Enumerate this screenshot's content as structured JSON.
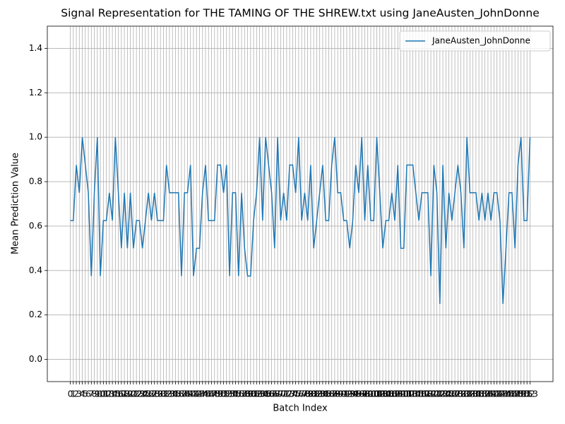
{
  "chart_data": {
    "type": "line",
    "title": "Signal Representation for THE TAMING OF THE SHREW.txt using JaneAusten_JohnDonne",
    "x_label": "Batch Index",
    "y_label": "Mean Prediction Value",
    "x": [
      0,
      1,
      2,
      3,
      4,
      5,
      6,
      7,
      8,
      9,
      10,
      11,
      12,
      13,
      14,
      15,
      16,
      17,
      18,
      19,
      20,
      21,
      22,
      23,
      24,
      25,
      26,
      27,
      28,
      29,
      30,
      31,
      32,
      33,
      34,
      35,
      36,
      37,
      38,
      39,
      40,
      41,
      42,
      43,
      44,
      45,
      46,
      47,
      48,
      49,
      50,
      51,
      52,
      53,
      54,
      55,
      56,
      57,
      58,
      59,
      60,
      61,
      62,
      63,
      64,
      65,
      66,
      67,
      68,
      69,
      70,
      71,
      72,
      73,
      74,
      75,
      76,
      77,
      78,
      79,
      80,
      81,
      82,
      83,
      84,
      85,
      86,
      87,
      88,
      89,
      90,
      91,
      92,
      93,
      94,
      95,
      96,
      97,
      98,
      99,
      100,
      101,
      102,
      103,
      104,
      105,
      106,
      107,
      108,
      109,
      110,
      111,
      112,
      113,
      114,
      115,
      116,
      117,
      118,
      119,
      120,
      121,
      122,
      123,
      124,
      125,
      126,
      127,
      128,
      129,
      130,
      131,
      132,
      133,
      134,
      135,
      136,
      137,
      138,
      139,
      140,
      141,
      142,
      143,
      144,
      145,
      146,
      147,
      148,
      149,
      150,
      151,
      152,
      153
    ],
    "series": [
      {
        "name": "JaneAusten_JohnDonne",
        "color": "#1f77b4",
        "values": [
          0.625,
          0.625,
          0.875,
          0.75,
          1.0,
          0.875,
          0.75,
          0.375,
          0.75,
          1.0,
          0.375,
          0.625,
          0.625,
          0.75,
          0.625,
          1.0,
          0.75,
          0.5,
          0.75,
          0.5,
          0.75,
          0.5,
          0.625,
          0.625,
          0.5,
          0.625,
          0.75,
          0.625,
          0.75,
          0.625,
          0.625,
          0.625,
          0.875,
          0.75,
          0.75,
          0.75,
          0.75,
          0.375,
          0.75,
          0.75,
          0.875,
          0.375,
          0.5,
          0.5,
          0.75,
          0.875,
          0.625,
          0.625,
          0.625,
          0.875,
          0.875,
          0.75,
          0.875,
          0.375,
          0.75,
          0.75,
          0.375,
          0.75,
          0.5,
          0.375,
          0.375,
          0.625,
          0.75,
          1.0,
          0.625,
          1.0,
          0.875,
          0.75,
          0.5,
          1.0,
          0.625,
          0.75,
          0.625,
          0.875,
          0.875,
          0.75,
          1.0,
          0.625,
          0.75,
          0.625,
          0.875,
          0.5,
          0.625,
          0.75,
          0.875,
          0.625,
          0.625,
          0.875,
          1.0,
          0.75,
          0.75,
          0.625,
          0.625,
          0.5,
          0.625,
          0.875,
          0.75,
          1.0,
          0.625,
          0.875,
          0.625,
          0.625,
          1.0,
          0.75,
          0.5,
          0.625,
          0.625,
          0.75,
          0.625,
          0.875,
          0.5,
          0.5,
          0.875,
          0.875,
          0.875,
          0.75,
          0.625,
          0.75,
          0.75,
          0.75,
          0.375,
          0.875,
          0.75,
          0.25,
          0.875,
          0.5,
          0.75,
          0.625,
          0.75,
          0.875,
          0.75,
          0.5,
          1.0,
          0.75,
          0.75,
          0.75,
          0.625,
          0.75,
          0.625,
          0.75,
          0.625,
          0.75,
          0.75,
          0.625,
          0.25,
          0.5,
          0.75,
          0.75,
          0.5,
          0.875,
          1.0,
          0.625,
          0.625,
          1.0
        ]
      }
    ],
    "xlim": [
      -7.65,
      160.65
    ],
    "xticks": [
      0,
      1,
      2,
      3,
      4,
      5,
      6,
      7,
      8,
      9,
      10,
      11,
      12,
      13,
      14,
      15,
      16,
      17,
      18,
      19,
      20,
      21,
      22,
      23,
      24,
      25,
      26,
      27,
      28,
      29,
      30,
      31,
      32,
      33,
      34,
      35,
      36,
      37,
      38,
      39,
      40,
      41,
      42,
      43,
      44,
      45,
      46,
      47,
      48,
      49,
      50,
      51,
      52,
      53,
      54,
      55,
      56,
      57,
      58,
      59,
      60,
      61,
      62,
      63,
      64,
      65,
      66,
      67,
      68,
      69,
      70,
      71,
      72,
      73,
      74,
      75,
      76,
      77,
      78,
      79,
      80,
      81,
      82,
      83,
      84,
      85,
      86,
      87,
      88,
      89,
      90,
      91,
      92,
      93,
      94,
      95,
      96,
      97,
      98,
      99,
      100,
      101,
      102,
      103,
      104,
      105,
      106,
      107,
      108,
      109,
      110,
      111,
      112,
      113,
      114,
      115,
      116,
      117,
      118,
      119,
      120,
      121,
      122,
      123,
      124,
      125,
      126,
      127,
      128,
      129,
      130,
      131,
      132,
      133,
      134,
      135,
      136,
      137,
      138,
      139,
      140,
      141,
      142,
      143,
      144,
      145,
      146,
      147,
      148,
      149,
      150,
      151,
      152,
      153
    ],
    "ylim": [
      -0.1,
      1.5
    ],
    "yticks": [
      {
        "value": 0,
        "label": "0.0"
      },
      0.2,
      0.4,
      0.6,
      0.8,
      {
        "value": 1,
        "label": "1.0"
      },
      1.2,
      1.4
    ],
    "grid": true,
    "legend": "upper right"
  }
}
